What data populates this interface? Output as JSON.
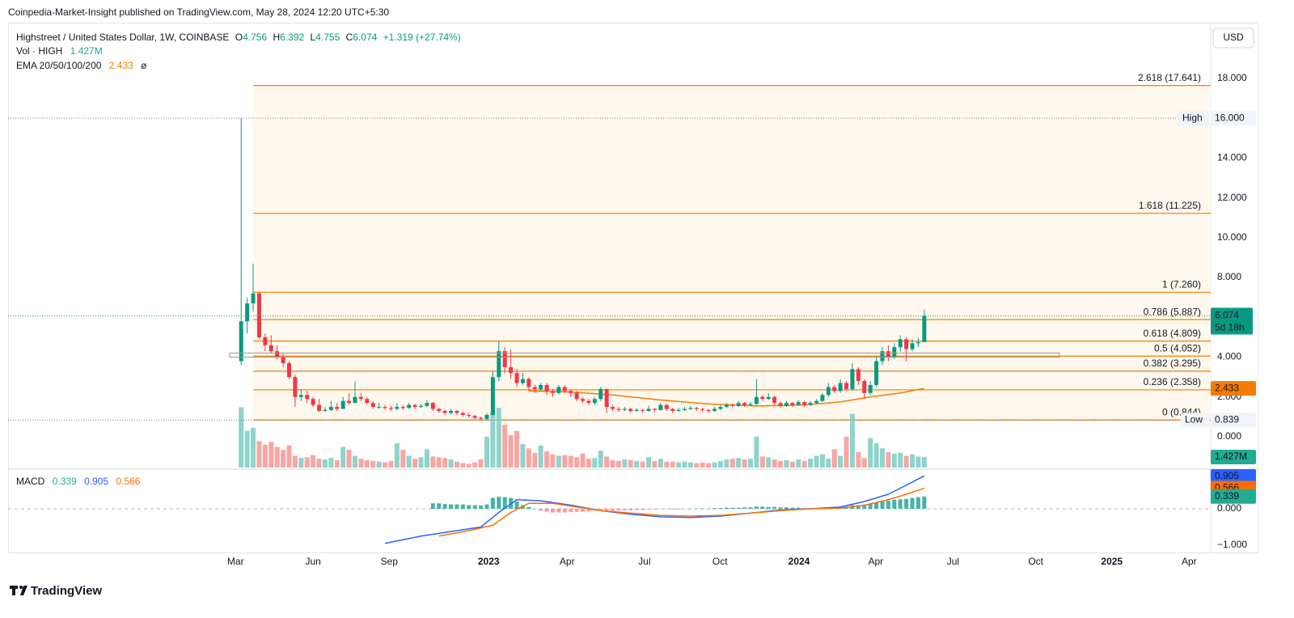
{
  "header": {
    "published": "Coinpedia-Market-Insight published on TradingView.com, May 28, 2024 12:20 UTC+5:30"
  },
  "footer": "TradingView",
  "chart_data": {
    "type": "candlestick",
    "symbol": "Highstreet / United States Dollar, 1W, COINBASE",
    "ohlc_keys": [
      "O",
      "H",
      "L",
      "C"
    ],
    "change": "+1.319 (+27.74%)",
    "currency": "USD",
    "up_color": "#089981",
    "down_color": "#f23645",
    "xlim": [
      -38.9,
      161.8
    ],
    "xticks": [
      {
        "value": -0.94,
        "label": "Mar"
      },
      {
        "value": 12.0,
        "label": "Jun"
      },
      {
        "value": 24.7,
        "label": "Sep"
      },
      {
        "value": 41.3,
        "label": "2023"
      },
      {
        "value": 54.4,
        "label": "Apr"
      },
      {
        "value": 67.3,
        "label": "Jul"
      },
      {
        "value": 79.9,
        "label": "Oct"
      },
      {
        "value": 93.1,
        "label": "2024"
      },
      {
        "value": 105.9,
        "label": "Apr"
      },
      {
        "value": 118.8,
        "label": "Jul"
      },
      {
        "value": 132.6,
        "label": "Oct"
      },
      {
        "value": 145.3,
        "label": "2025"
      },
      {
        "value": 158.2,
        "label": "Apr"
      }
    ],
    "ylim": [
      -1.625,
      20.8
    ],
    "yticks": [
      {
        "value": 0,
        "label": "0.000"
      },
      {
        "value": 2,
        "label": "2.000"
      },
      {
        "value": 4,
        "label": "4.000"
      },
      {
        "value": 8,
        "label": "8.000"
      },
      {
        "value": 10,
        "label": "10.000"
      },
      {
        "value": 12,
        "label": "12.000"
      },
      {
        "value": 14,
        "label": "14.000"
      },
      {
        "value": 18,
        "label": "18.000"
      }
    ],
    "candles": [
      [
        3.8,
        16.0,
        3.6,
        5.8
      ],
      [
        5.8,
        7.0,
        5.2,
        6.7
      ],
      [
        6.7,
        8.7,
        6.3,
        7.2
      ],
      [
        7.2,
        7.3,
        4.9,
        5.0
      ],
      [
        5.0,
        5.2,
        4.3,
        4.6
      ],
      [
        4.6,
        5.1,
        4.2,
        4.3
      ],
      [
        4.3,
        4.6,
        3.9,
        4.0
      ],
      [
        4.0,
        4.2,
        3.5,
        3.7
      ],
      [
        3.7,
        3.8,
        2.9,
        3.0
      ],
      [
        3.0,
        3.1,
        1.5,
        2.0
      ],
      [
        2.0,
        2.4,
        1.8,
        2.1
      ],
      [
        2.1,
        2.3,
        1.7,
        1.9
      ],
      [
        1.9,
        2.0,
        1.5,
        1.6
      ],
      [
        1.6,
        1.9,
        1.25,
        1.3
      ],
      [
        1.3,
        1.5,
        1.25,
        1.35
      ],
      [
        1.35,
        1.8,
        1.3,
        1.5
      ],
      [
        1.5,
        1.7,
        1.3,
        1.4
      ],
      [
        1.4,
        2.0,
        1.4,
        1.8
      ],
      [
        1.8,
        2.2,
        1.6,
        1.7
      ],
      [
        1.7,
        2.8,
        1.7,
        2.0
      ],
      [
        2.0,
        2.2,
        1.8,
        1.9
      ],
      [
        1.9,
        2.0,
        1.6,
        1.7
      ],
      [
        1.7,
        1.8,
        1.4,
        1.5
      ],
      [
        1.5,
        1.7,
        1.4,
        1.5
      ],
      [
        1.5,
        1.6,
        1.35,
        1.45
      ],
      [
        1.45,
        1.55,
        1.3,
        1.4
      ],
      [
        1.4,
        1.7,
        1.35,
        1.5
      ],
      [
        1.5,
        1.6,
        1.35,
        1.45
      ],
      [
        1.45,
        1.7,
        1.4,
        1.6
      ],
      [
        1.6,
        1.65,
        1.4,
        1.5
      ],
      [
        1.5,
        1.65,
        1.45,
        1.55
      ],
      [
        1.55,
        1.85,
        1.5,
        1.7
      ],
      [
        1.7,
        1.75,
        1.3,
        1.4
      ],
      [
        1.4,
        1.45,
        1.2,
        1.3
      ],
      [
        1.3,
        1.35,
        1.1,
        1.2
      ],
      [
        1.2,
        1.4,
        1.15,
        1.3
      ],
      [
        1.3,
        1.35,
        1.1,
        1.2
      ],
      [
        1.2,
        1.25,
        1.0,
        1.1
      ],
      [
        1.1,
        1.2,
        0.95,
        1.05
      ],
      [
        1.05,
        1.1,
        0.88,
        0.95
      ],
      [
        0.95,
        1.0,
        0.839,
        0.9
      ],
      [
        0.9,
        1.2,
        0.85,
        1.1
      ],
      [
        1.1,
        3.3,
        1.05,
        3.0
      ],
      [
        3.0,
        4.8,
        2.8,
        4.3
      ],
      [
        4.3,
        4.5,
        3.2,
        3.5
      ],
      [
        3.5,
        4.4,
        2.9,
        3.2
      ],
      [
        3.2,
        3.4,
        2.5,
        2.7
      ],
      [
        2.7,
        3.2,
        2.6,
        2.9
      ],
      [
        2.9,
        3.0,
        2.3,
        2.5
      ],
      [
        2.5,
        2.6,
        2.2,
        2.4
      ],
      [
        2.4,
        2.7,
        2.3,
        2.6
      ],
      [
        2.6,
        2.7,
        2.1,
        2.3
      ],
      [
        2.3,
        2.4,
        2.0,
        2.2
      ],
      [
        2.2,
        2.6,
        2.1,
        2.5
      ],
      [
        2.5,
        2.6,
        2.2,
        2.3
      ],
      [
        2.3,
        2.4,
        2.0,
        2.2
      ],
      [
        2.2,
        2.3,
        1.8,
        1.9
      ],
      [
        1.9,
        2.0,
        1.7,
        1.8
      ],
      [
        1.8,
        1.9,
        1.6,
        1.7
      ],
      [
        1.7,
        2.0,
        1.6,
        1.9
      ],
      [
        1.9,
        2.5,
        1.8,
        2.4
      ],
      [
        2.4,
        2.4,
        1.2,
        1.5
      ],
      [
        1.5,
        1.6,
        1.3,
        1.4
      ],
      [
        1.4,
        1.5,
        1.25,
        1.35
      ],
      [
        1.35,
        1.5,
        1.3,
        1.4
      ],
      [
        1.4,
        1.45,
        1.2,
        1.3
      ],
      [
        1.3,
        1.45,
        1.25,
        1.35
      ],
      [
        1.35,
        1.4,
        1.2,
        1.3
      ],
      [
        1.3,
        1.55,
        1.25,
        1.4
      ],
      [
        1.4,
        1.45,
        1.25,
        1.35
      ],
      [
        1.35,
        1.7,
        1.3,
        1.6
      ],
      [
        1.6,
        1.65,
        1.3,
        1.4
      ],
      [
        1.4,
        1.45,
        1.2,
        1.3
      ],
      [
        1.3,
        1.45,
        1.25,
        1.35
      ],
      [
        1.35,
        1.5,
        1.3,
        1.4
      ],
      [
        1.4,
        1.55,
        1.35,
        1.45
      ],
      [
        1.45,
        1.5,
        1.3,
        1.4
      ],
      [
        1.4,
        1.45,
        1.25,
        1.35
      ],
      [
        1.35,
        1.4,
        1.2,
        1.3
      ],
      [
        1.3,
        1.5,
        1.25,
        1.4
      ],
      [
        1.4,
        1.6,
        1.35,
        1.5
      ],
      [
        1.5,
        1.7,
        1.45,
        1.6
      ],
      [
        1.6,
        1.65,
        1.45,
        1.55
      ],
      [
        1.55,
        1.8,
        1.5,
        1.7
      ],
      [
        1.7,
        1.75,
        1.5,
        1.6
      ],
      [
        1.6,
        1.75,
        1.55,
        1.65
      ],
      [
        1.65,
        2.9,
        1.6,
        2.0
      ],
      [
        2.0,
        2.1,
        1.8,
        1.9
      ],
      [
        1.9,
        2.2,
        1.85,
        2.0
      ],
      [
        2.0,
        2.05,
        1.6,
        1.7
      ],
      [
        1.7,
        1.75,
        1.45,
        1.55
      ],
      [
        1.55,
        1.8,
        1.5,
        1.7
      ],
      [
        1.7,
        1.75,
        1.5,
        1.6
      ],
      [
        1.6,
        1.85,
        1.55,
        1.75
      ],
      [
        1.75,
        1.8,
        1.5,
        1.6
      ],
      [
        1.6,
        1.8,
        1.55,
        1.7
      ],
      [
        1.7,
        1.9,
        1.65,
        1.8
      ],
      [
        1.8,
        2.2,
        1.75,
        2.1
      ],
      [
        2.1,
        2.7,
        2.0,
        2.5
      ],
      [
        2.5,
        2.6,
        2.2,
        2.3
      ],
      [
        2.3,
        2.9,
        2.2,
        2.7
      ],
      [
        2.7,
        2.8,
        2.3,
        2.4
      ],
      [
        2.4,
        3.7,
        2.3,
        3.4
      ],
      [
        3.4,
        3.5,
        2.6,
        2.8
      ],
      [
        2.8,
        2.9,
        1.9,
        2.2
      ],
      [
        2.2,
        2.8,
        2.1,
        2.6
      ],
      [
        2.6,
        4.0,
        2.5,
        3.8
      ],
      [
        3.8,
        4.5,
        3.6,
        4.3
      ],
      [
        4.3,
        4.6,
        3.8,
        4.0
      ],
      [
        4.0,
        4.7,
        3.9,
        4.5
      ],
      [
        4.5,
        5.1,
        4.3,
        4.9
      ],
      [
        4.9,
        5.0,
        3.8,
        4.4
      ],
      [
        4.4,
        4.9,
        4.3,
        4.7
      ],
      [
        4.7,
        4.95,
        4.5,
        4.755
      ],
      [
        4.756,
        6.392,
        4.755,
        6.074
      ]
    ],
    "volume": {
      "name": "Vol · HIGH",
      "ylim": [
        0,
        30
      ],
      "up_color": "#8fd3cb",
      "down_color": "#f7a6a4",
      "badge_color": "#22ab94",
      "values": [
        8.2,
        5.0,
        5.4,
        3.6,
        3.1,
        3.5,
        2.8,
        2.4,
        3.0,
        1.6,
        1.3,
        1.4,
        1.7,
        1.2,
        1.1,
        1.3,
        1.0,
        2.8,
        2.4,
        1.6,
        1.2,
        1.0,
        0.9,
        0.8,
        0.7,
        0.9,
        3.3,
        2.4,
        1.6,
        1.2,
        1.4,
        2.5,
        1.5,
        1.4,
        1.3,
        1.1,
        0.8,
        0.6,
        0.5,
        0.7,
        1.1,
        4.2,
        7.5,
        8.1,
        5.8,
        4.4,
        5.0,
        3.2,
        2.6,
        2.0,
        3.0,
        2.2,
        1.8,
        1.6,
        1.7,
        1.6,
        1.4,
        1.9,
        1.2,
        1.3,
        2.3,
        1.5,
        1.0,
        0.9,
        1.1,
        1.0,
        0.9,
        0.8,
        1.4,
        0.9,
        1.2,
        0.8,
        0.8,
        0.7,
        0.8,
        0.7,
        0.6,
        0.7,
        0.6,
        0.7,
        0.9,
        1.1,
        1.2,
        1.3,
        1.1,
        1.2,
        4.2,
        1.5,
        1.4,
        1.1,
        0.9,
        1.0,
        0.8,
        1.1,
        0.9,
        1.2,
        1.6,
        1.8,
        1.2,
        2.5,
        1.6,
        4.2,
        7.3,
        2.1,
        1.3,
        4.0,
        3.3,
        2.6,
        2.1,
        1.9,
        2.0,
        1.6,
        1.8,
        1.5,
        1.427
      ],
      "value_labels": {
        "114": "1.427M"
      }
    },
    "ema": {
      "name": "EMA 20/50/100/200",
      "suffix": "ø",
      "color": "#f57c00",
      "x": [
        48,
        55,
        62,
        70,
        78,
        86,
        94,
        100,
        105,
        110,
        114
      ],
      "values": [
        2.3,
        2.25,
        2.1,
        1.85,
        1.65,
        1.55,
        1.6,
        1.75,
        2.0,
        2.2,
        2.433
      ]
    },
    "fib": {
      "x_start": 2,
      "color": "#f57c00",
      "fill": "#fff8ee",
      "levels": [
        {
          "value": 0.844,
          "label": "0 (0.844)"
        },
        {
          "value": 2.358,
          "label": "0.236 (2.358)"
        },
        {
          "value": 3.295,
          "label": "0.382 (3.295)"
        },
        {
          "value": 4.052,
          "label": "0.5 (4.052)"
        },
        {
          "value": 4.809,
          "label": "0.618 (4.809)"
        },
        {
          "value": 5.887,
          "label": "0.786 (5.887)"
        },
        {
          "value": 7.26,
          "label": "1 (7.260)"
        },
        {
          "value": 11.225,
          "label": "1.618 (11.225)"
        },
        {
          "value": 17.641,
          "label": "2.618 (17.641)"
        }
      ]
    },
    "high_marker": {
      "label": "High",
      "value": 16,
      "value_label": "16.000"
    },
    "low_marker": {
      "label": "Low"
    },
    "countdown": "5d 18h",
    "macd": {
      "title": "MACD",
      "ylim": [
        -1.2,
        1.089
      ],
      "yticks": [
        {
          "value": 0,
          "label": "0.000"
        },
        {
          "value": -1,
          "label": "−1.000"
        }
      ],
      "macd": {
        "color": "#2962ff",
        "x": [
          24,
          30,
          36,
          40,
          43,
          46,
          50,
          55,
          60,
          65,
          70,
          75,
          80,
          85,
          90,
          95,
          100,
          104,
          108,
          111,
          114
        ],
        "values": [
          -0.95,
          -0.75,
          -0.6,
          -0.5,
          -0.1,
          0.25,
          0.22,
          0.1,
          -0.05,
          -0.15,
          -0.22,
          -0.24,
          -0.2,
          -0.12,
          -0.03,
          0.0,
          0.05,
          0.2,
          0.4,
          0.65,
          0.905
        ]
      },
      "signal": {
        "color": "#ff6d00",
        "x": [
          33,
          38,
          42,
          45,
          48,
          52,
          56,
          60,
          65,
          70,
          75,
          80,
          85,
          90,
          95,
          100,
          104,
          108,
          111,
          114
        ],
        "values": [
          -0.75,
          -0.6,
          -0.45,
          -0.1,
          0.15,
          0.15,
          0.05,
          -0.05,
          -0.12,
          -0.18,
          -0.2,
          -0.18,
          -0.12,
          -0.05,
          0.0,
          0.02,
          0.1,
          0.25,
          0.4,
          0.566
        ]
      },
      "histogram": {
        "color": "#22ab94",
        "pos_color": "#26a69a",
        "neg_color": "#ff8a80",
        "values": [
          null,
          null,
          null,
          null,
          null,
          null,
          null,
          null,
          null,
          null,
          null,
          null,
          null,
          null,
          null,
          null,
          null,
          null,
          null,
          null,
          null,
          null,
          null,
          null,
          null,
          null,
          null,
          null,
          null,
          null,
          null,
          null,
          0.15,
          0.15,
          0.13,
          0.12,
          0.12,
          0.12,
          0.1,
          0.1,
          0.09,
          0.12,
          0.3,
          0.33,
          0.32,
          0.3,
          0.2,
          0.1,
          0.05,
          0.0,
          -0.05,
          -0.08,
          -0.1,
          -0.1,
          -0.1,
          -0.09,
          -0.08,
          -0.08,
          -0.07,
          -0.05,
          -0.03,
          -0.05,
          -0.06,
          -0.05,
          -0.04,
          -0.04,
          -0.03,
          -0.03,
          -0.02,
          -0.02,
          -0.01,
          -0.01,
          -0.02,
          -0.02,
          -0.01,
          0.0,
          0.01,
          0.01,
          0.01,
          0.02,
          0.02,
          0.03,
          0.03,
          0.03,
          0.04,
          0.04,
          0.06,
          0.06,
          0.05,
          0.05,
          0.04,
          0.04,
          0.03,
          0.03,
          0.02,
          0.02,
          0.02,
          0.03,
          0.04,
          0.05,
          0.05,
          0.06,
          0.1,
          0.1,
          0.1,
          0.13,
          0.17,
          0.2,
          0.22,
          0.25,
          0.26,
          0.27,
          0.3,
          0.32,
          0.339
        ]
      }
    }
  }
}
